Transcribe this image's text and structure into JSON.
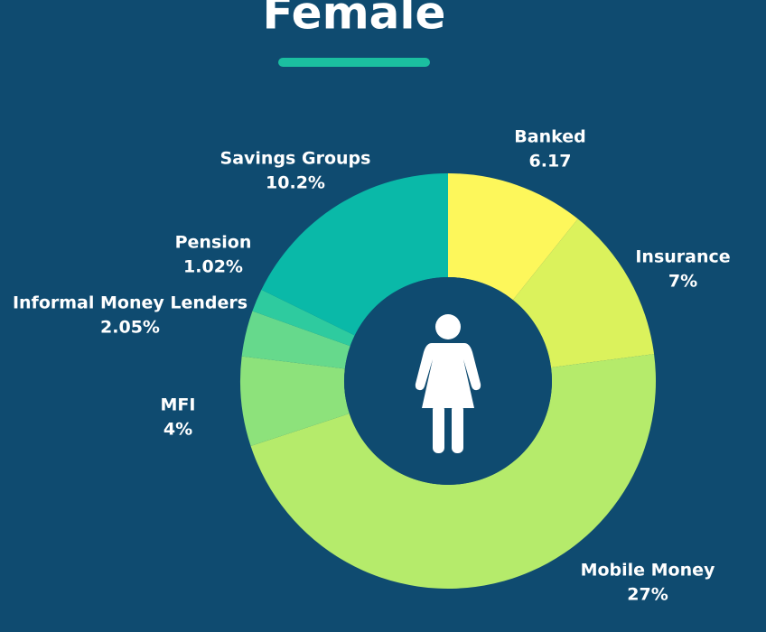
{
  "chart_data": {
    "type": "donut",
    "title": "Female",
    "categories": [
      "Banked",
      "Insurance",
      "Mobile Money",
      "MFI",
      "Informal Money Lenders",
      "Pension",
      "Savings Groups"
    ],
    "values": [
      6.17,
      7,
      27,
      4,
      2.05,
      1.02,
      10.2
    ],
    "value_labels": [
      "6.17",
      "7%",
      "27%",
      "4%",
      "2.05%",
      "1.02%",
      "10.2%"
    ],
    "colors": [
      "#fdf75b",
      "#dbf25c",
      "#b5eb6b",
      "#8de27b",
      "#66d98c",
      "#2ecb9f",
      "#0ab9a8"
    ]
  }
}
